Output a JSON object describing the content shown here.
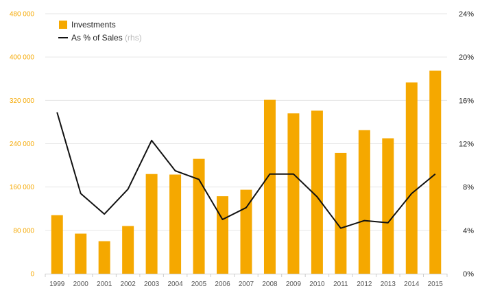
{
  "chart_data": {
    "type": "bar",
    "categories": [
      "1999",
      "2000",
      "2001",
      "2002",
      "2003",
      "2004",
      "2005",
      "2006",
      "2007",
      "2008",
      "2009",
      "2010",
      "2011",
      "2012",
      "2013",
      "2014",
      "2015"
    ],
    "series": [
      {
        "name": "Investments",
        "type": "bar",
        "axis": "left",
        "color": "#F5A800",
        "values": [
          108000,
          74000,
          60000,
          88000,
          184000,
          183000,
          212000,
          143000,
          155000,
          321000,
          296000,
          301000,
          223000,
          265000,
          250000,
          353000,
          375000
        ]
      },
      {
        "name": "As % of Sales",
        "type": "line",
        "axis": "right",
        "color": "#111111",
        "values": [
          14.9,
          7.4,
          5.5,
          7.8,
          12.3,
          9.5,
          8.7,
          5.0,
          6.1,
          9.2,
          9.2,
          7.1,
          4.2,
          4.9,
          4.7,
          7.4,
          9.2
        ]
      }
    ],
    "legend": {
      "position": "top-left",
      "entries": [
        {
          "label": "Investments",
          "suffix": ""
        },
        {
          "label": "As % of Sales",
          "suffix": "(rhs)"
        }
      ]
    },
    "y_left": {
      "ylim": [
        0,
        480000
      ],
      "ticks": [
        0,
        80000,
        160000,
        240000,
        320000,
        400000,
        480000
      ],
      "tick_labels": [
        "0",
        "80 000",
        "160 000",
        "240 000",
        "320 000",
        "400 000",
        "480 000"
      ],
      "label_color": "#F5A800"
    },
    "y_right": {
      "ylim": [
        0,
        24
      ],
      "ticks": [
        0,
        4,
        8,
        12,
        16,
        20,
        24
      ],
      "tick_labels": [
        "0%",
        "4%",
        "8%",
        "12%",
        "16%",
        "20%",
        "24%"
      ]
    },
    "grid": true,
    "grid_color": "#E6E6E6",
    "title": "",
    "xlabel": "",
    "ylabel": ""
  }
}
